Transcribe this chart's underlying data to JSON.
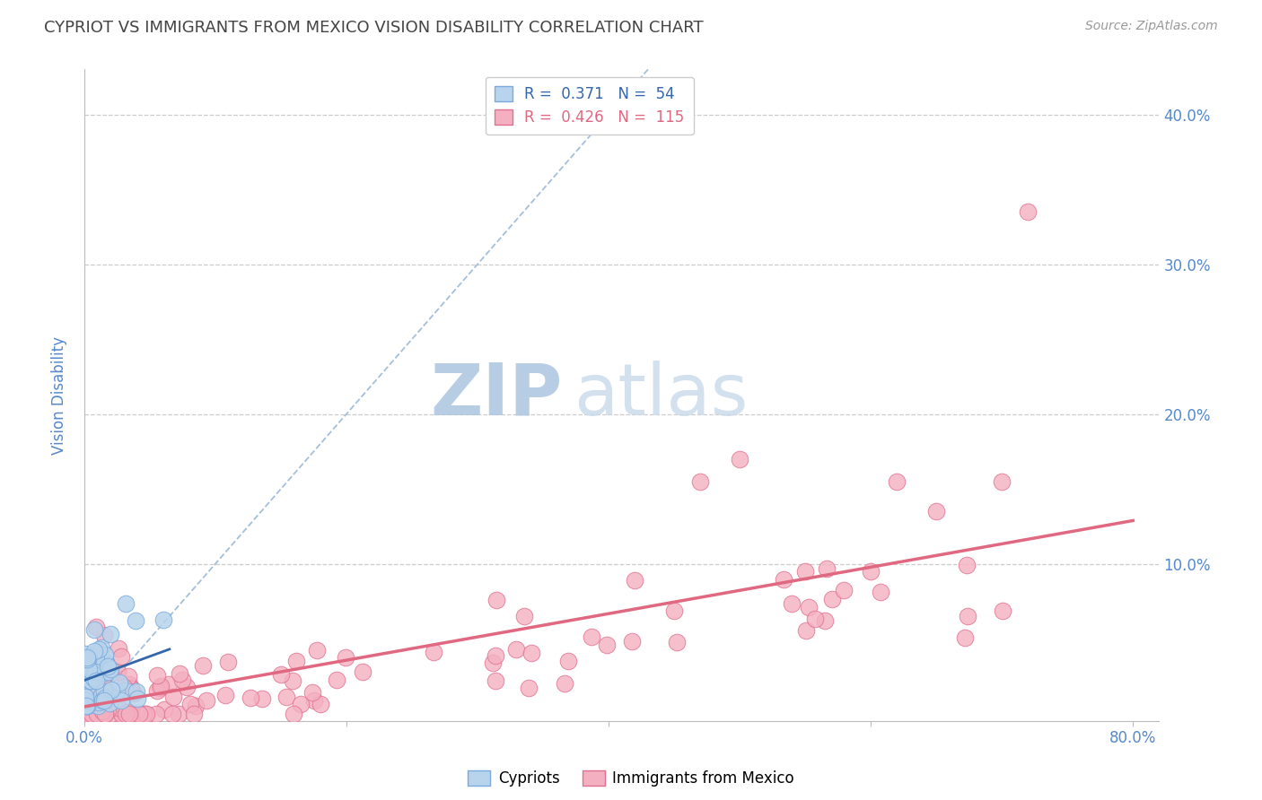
{
  "title": "CYPRIOT VS IMMIGRANTS FROM MEXICO VISION DISABILITY CORRELATION CHART",
  "source": "Source: ZipAtlas.com",
  "ylabel": "Vision Disability",
  "xlim": [
    0.0,
    0.82
  ],
  "ylim": [
    -0.005,
    0.43
  ],
  "cypriot_color": "#b8d4ec",
  "mexico_color": "#f4b0c0",
  "cypriot_edge": "#7aaadd",
  "mexico_edge": "#e07090",
  "ref_line_color": "#9ab8d8",
  "cypriot_trend_color": "#3366aa",
  "mexico_trend_color": "#e06880",
  "watermark_zip_color": "#c8d8e8",
  "watermark_atlas_color": "#c8d8e8",
  "grid_color": "#cccccc",
  "axis_label_color": "#5588cc",
  "mexico_regression_slope": 0.115,
  "mexico_regression_intercept": 0.005,
  "cypriot_regression_slope": 0.45,
  "cypriot_regression_intercept": 0.02
}
